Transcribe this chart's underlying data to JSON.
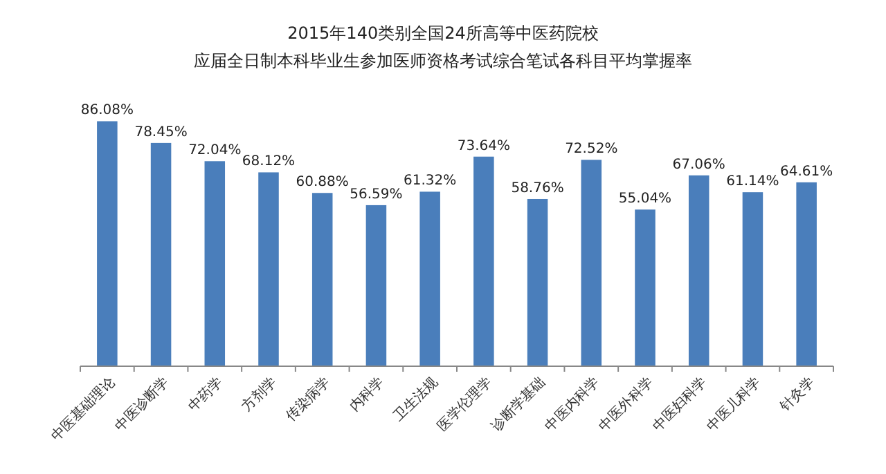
{
  "chart_data": {
    "type": "bar",
    "title": "2015年140类别全国24所高等中医药院校",
    "subtitle": "应届全日制本科毕业生参加医师资格考试综合笔试各科目平均掌握率",
    "categories": [
      "中医基础理论",
      "中医诊断学",
      "中药学",
      "方剂学",
      "传染病学",
      "内科学",
      "卫生法规",
      "医学伦理学",
      "诊断学基础",
      "中医内科学",
      "中医外科学",
      "中医妇科学",
      "中医儿科学",
      "针灸学"
    ],
    "values": [
      86.08,
      78.45,
      72.04,
      68.12,
      60.88,
      56.59,
      61.32,
      73.64,
      58.76,
      72.52,
      55.04,
      67.06,
      61.14,
      64.61
    ],
    "value_labels": [
      "86.08%",
      "78.45%",
      "72.04%",
      "68.12%",
      "60.88%",
      "56.59%",
      "61.32%",
      "73.64%",
      "58.76%",
      "72.52%",
      "55.04%",
      "67.06%",
      "61.14%",
      "64.61%"
    ],
    "color": "#4a7ebb",
    "tick_labels": "x"
  }
}
